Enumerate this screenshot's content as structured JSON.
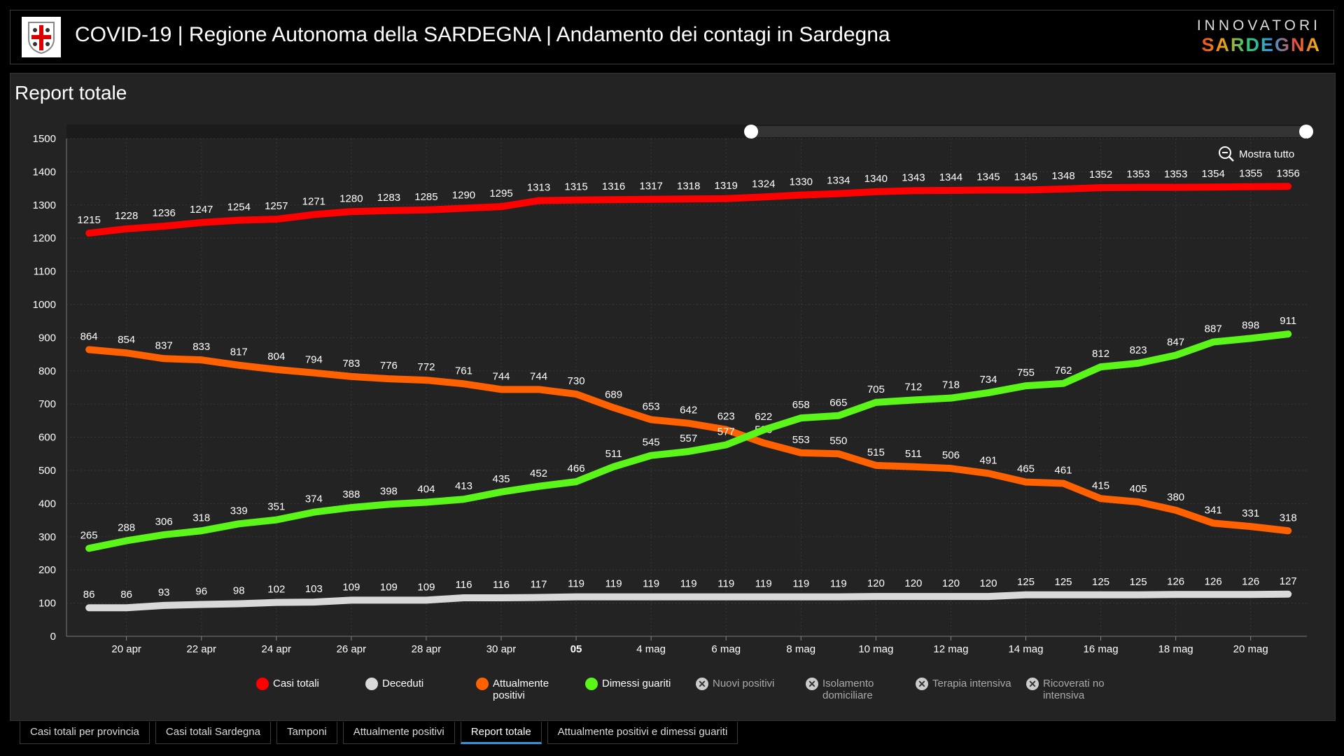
{
  "header": {
    "title": "COVID-19 | Regione Autonoma della SARDEGNA | Andamento dei contagi in Sardegna",
    "brand_top": "INNOVATORI",
    "brand_bottom": "SARDEGNA"
  },
  "panel": {
    "title": "Report totale",
    "zoom_reset_label": "Mostra tutto"
  },
  "chart_data": {
    "type": "line",
    "title": "Report totale",
    "x": [
      "19 apr",
      "20 apr",
      "21 apr",
      "22 apr",
      "23 apr",
      "24 apr",
      "25 apr",
      "26 apr",
      "27 apr",
      "28 apr",
      "29 apr",
      "30 apr",
      "1 mag",
      "2 mag",
      "3 mag",
      "4 mag",
      "5 mag",
      "6 mag",
      "7 mag",
      "8 mag",
      "9 mag",
      "10 mag",
      "11 mag",
      "12 mag",
      "13 mag",
      "14 mag",
      "15 mag",
      "16 mag",
      "17 mag",
      "18 mag",
      "19 mag",
      "20 mag",
      "21 mag"
    ],
    "x_ticks": [
      {
        "i": 1,
        "label": "20 apr"
      },
      {
        "i": 3,
        "label": "22 apr"
      },
      {
        "i": 5,
        "label": "24 apr"
      },
      {
        "i": 7,
        "label": "26 apr"
      },
      {
        "i": 9,
        "label": "28 apr"
      },
      {
        "i": 11,
        "label": "30 apr"
      },
      {
        "i": 13,
        "label": "05",
        "bold": true
      },
      {
        "i": 15,
        "label": "4 mag"
      },
      {
        "i": 17,
        "label": "6 mag"
      },
      {
        "i": 19,
        "label": "8 mag"
      },
      {
        "i": 21,
        "label": "10 mag"
      },
      {
        "i": 23,
        "label": "12 mag"
      },
      {
        "i": 25,
        "label": "14 mag"
      },
      {
        "i": 27,
        "label": "16 mag"
      },
      {
        "i": 29,
        "label": "18 mag"
      },
      {
        "i": 31,
        "label": "20 mag"
      }
    ],
    "ylim": [
      0,
      1500
    ],
    "y_ticks": [
      0,
      100,
      200,
      300,
      400,
      500,
      600,
      700,
      800,
      900,
      1000,
      1100,
      1200,
      1300,
      1400,
      1500
    ],
    "grid": true,
    "legend_position": "bottom",
    "series": [
      {
        "name": "Casi totali",
        "color": "#ff0000",
        "visible": true,
        "values": [
          1215,
          1228,
          1236,
          1247,
          1254,
          1257,
          1271,
          1280,
          1283,
          1285,
          1290,
          1295,
          1313,
          1315,
          1316,
          1317,
          1318,
          1319,
          1324,
          1330,
          1334,
          1340,
          1343,
          1344,
          1345,
          1345,
          1348,
          1352,
          1353,
          1353,
          1354,
          1355,
          1356
        ]
      },
      {
        "name": "Deceduti",
        "color": "#d9d9d9",
        "visible": true,
        "values": [
          86,
          86,
          93,
          96,
          98,
          102,
          103,
          109,
          109,
          109,
          116,
          116,
          117,
          119,
          119,
          119,
          119,
          119,
          119,
          119,
          119,
          120,
          120,
          120,
          120,
          125,
          125,
          125,
          125,
          126,
          126,
          126,
          127
        ]
      },
      {
        "name": "Attualmente positivi",
        "color": "#ff6000",
        "visible": true,
        "values": [
          864,
          854,
          837,
          833,
          817,
          804,
          794,
          783,
          776,
          772,
          761,
          744,
          744,
          730,
          689,
          653,
          642,
          623,
          583,
          553,
          550,
          515,
          511,
          506,
          491,
          465,
          461,
          415,
          405,
          380,
          341,
          331,
          318
        ]
      },
      {
        "name": "Dimessi guariti",
        "color": "#5cf51a",
        "visible": true,
        "values": [
          265,
          288,
          306,
          318,
          339,
          351,
          374,
          388,
          398,
          404,
          413,
          435,
          452,
          466,
          511,
          545,
          557,
          577,
          622,
          658,
          665,
          705,
          712,
          718,
          734,
          755,
          762,
          812,
          823,
          847,
          887,
          898,
          911
        ]
      },
      {
        "name": "Nuovi positivi",
        "visible": false
      },
      {
        "name": "Isolamento domiciliare",
        "visible": false
      },
      {
        "name": "Terapia intensiva",
        "visible": false
      },
      {
        "name": "Ricoverati no intensiva",
        "visible": false
      }
    ]
  },
  "legend": [
    {
      "label": "Casi totali",
      "color": "#ff0000"
    },
    {
      "label": "Deceduti",
      "color": "#d9d9d9"
    },
    {
      "label": "Attualmente positivi",
      "color": "#ff6000"
    },
    {
      "label": "Dimessi guariti",
      "color": "#5cf51a"
    },
    {
      "label": "Nuovi positivi"
    },
    {
      "label": "Isolamento domiciliare"
    },
    {
      "label": "Terapia intensiva"
    },
    {
      "label": "Ricoverati no intensiva"
    }
  ],
  "tabs": [
    {
      "label": "Casi totali per provincia"
    },
    {
      "label": "Casi totali Sardegna"
    },
    {
      "label": "Tamponi"
    },
    {
      "label": "Attualmente positivi"
    },
    {
      "label": "Report totale",
      "active": true
    },
    {
      "label": "Attualmente positivi e dimessi guariti"
    }
  ]
}
